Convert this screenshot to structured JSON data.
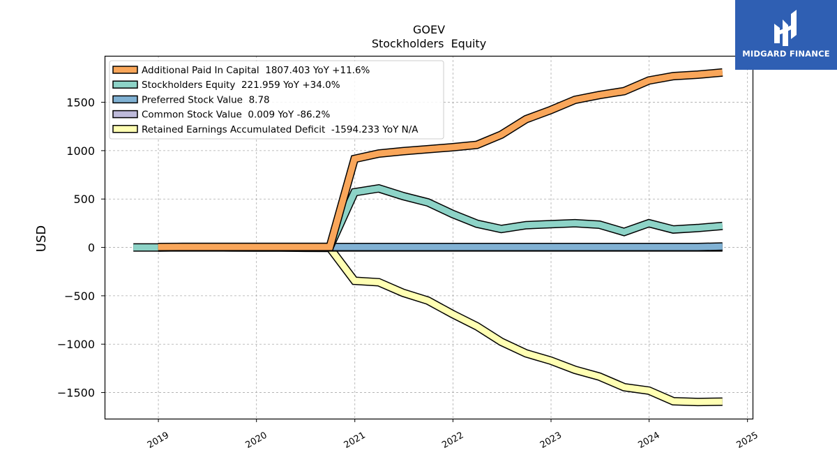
{
  "chart_data": {
    "type": "line",
    "title": "GOEV",
    "subtitle": "Stockholders  Equity",
    "ylabel": "USD",
    "xlabel": "",
    "x_tick_labels": [
      "2019",
      "2020",
      "2021",
      "2022",
      "2023",
      "2024",
      "2025"
    ],
    "y_tick_labels": [
      "1500",
      "1000",
      "500",
      "0",
      "−500",
      "−1000",
      "−1500"
    ],
    "y_ticks": [
      1500,
      1000,
      500,
      0,
      -500,
      -1000,
      -1500
    ],
    "x_ticks": [
      "2019-01-01",
      "2020-01-01",
      "2021-01-01",
      "2022-01-01",
      "2023-01-01",
      "2024-01-01",
      "2025-01-01"
    ],
    "xlim": [
      "2018-06-15",
      "2025-01-20"
    ],
    "ylim": [
      -1770,
      1980
    ],
    "grid": true,
    "legend_position": "top-left",
    "dates": [
      "2018-09-30",
      "2018-12-31",
      "2019-03-31",
      "2019-06-30",
      "2019-09-30",
      "2019-12-31",
      "2020-03-31",
      "2020-06-30",
      "2020-09-30",
      "2020-12-31",
      "2021-03-31",
      "2021-06-30",
      "2021-09-30",
      "2021-12-31",
      "2022-03-31",
      "2022-06-30",
      "2022-09-30",
      "2022-12-31",
      "2023-03-31",
      "2023-06-30",
      "2023-09-30",
      "2023-12-31",
      "2024-03-31",
      "2024-06-30",
      "2024-09-30"
    ],
    "series": [
      {
        "name": "Additional Paid In Capital  1807.403 YoY +11.6%",
        "color": "#f9a65a",
        "values": [
          null,
          4,
          5,
          5,
          5,
          5,
          5,
          5,
          5,
          915,
          970,
          995,
          1015,
          1035,
          1060,
          1165,
          1325,
          1420,
          1525,
          1575,
          1615,
          1725,
          1770,
          1785,
          1807.403
        ]
      },
      {
        "name": "Stockholders Equity  221.959 YoY +34.0%",
        "color": "#8dd3c7",
        "values": [
          0,
          0,
          5,
          5,
          5,
          5,
          5,
          5,
          5,
          570,
          610,
          530,
          465,
          345,
          245,
          190,
          230,
          240,
          250,
          235,
          160,
          250,
          185,
          200,
          221.959
        ]
      },
      {
        "name": "Preferred Stock Value  8.78",
        "color": "#80b1d3",
        "values": [
          null,
          4,
          4,
          4,
          4,
          4,
          4,
          4,
          4,
          4,
          4,
          4,
          4,
          4,
          4,
          4,
          4,
          4,
          4,
          4,
          4,
          4,
          4,
          4,
          8.78
        ]
      },
      {
        "name": "Common Stock Value  0.009 YoY -86.2%",
        "color": "#bebada",
        "values": [
          null,
          0,
          0,
          0,
          0,
          0,
          0,
          0,
          0,
          0,
          0,
          0,
          0,
          0,
          0,
          0,
          0,
          0,
          0,
          0,
          0,
          0,
          0,
          0,
          0.009
        ]
      },
      {
        "name": "Retained Earnings Accumulated Deficit  -1594.233 YoY N/A",
        "color": "#ffffb3",
        "values": [
          null,
          -2,
          2,
          2,
          0,
          -2,
          -2,
          -4,
          -5,
          -345,
          -360,
          -470,
          -550,
          -690,
          -815,
          -975,
          -1095,
          -1170,
          -1265,
          -1335,
          -1445,
          -1480,
          -1590,
          -1598,
          -1594.233
        ]
      }
    ]
  },
  "logo": {
    "text": "MIDGARD FINANCE"
  }
}
